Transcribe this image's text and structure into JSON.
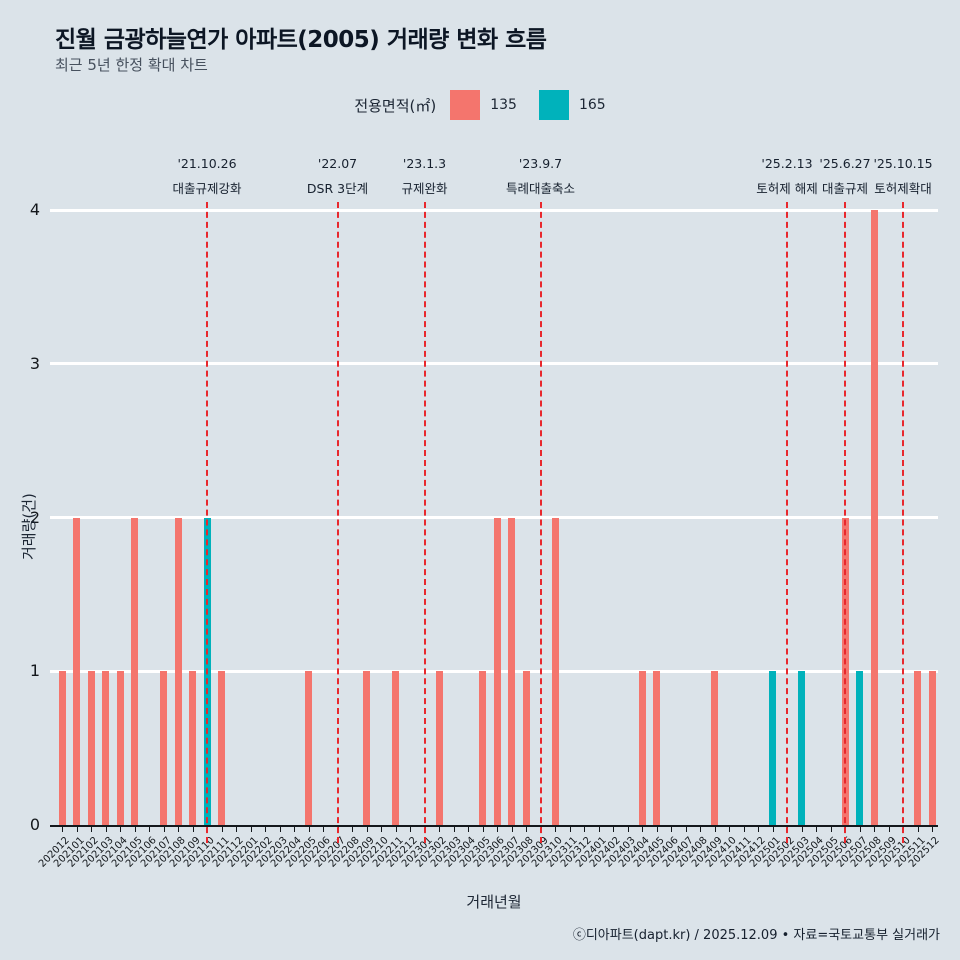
{
  "header": {
    "title": "진월 금광하늘연가 아파트(2005) 거래량 변화 흐름",
    "subtitle": "최근 5년 한정 확대 차트"
  },
  "legend": {
    "label": "전용면적(㎡)",
    "items": [
      {
        "label": "135",
        "color": "#f4756d"
      },
      {
        "label": "165",
        "color": "#00b2bb"
      }
    ]
  },
  "chart_data": {
    "type": "bar",
    "title": "진월 금광하늘연가 아파트(2005) 거래량 변화 흐름",
    "subtitle": "최근 5년 한정 확대 차트",
    "xlabel": "거래년월",
    "ylabel": "거래량(건)",
    "ylim": [
      0,
      4
    ],
    "yticks": [
      0,
      1,
      2,
      3,
      4
    ],
    "grid": true,
    "legend_position": "top",
    "categories": [
      "202012",
      "202101",
      "202102",
      "202103",
      "202104",
      "202105",
      "202106",
      "202107",
      "202108",
      "202109",
      "202110",
      "202111",
      "202112",
      "202201",
      "202202",
      "202203",
      "202204",
      "202205",
      "202206",
      "202207",
      "202208",
      "202209",
      "202210",
      "202211",
      "202212",
      "202301",
      "202302",
      "202303",
      "202304",
      "202305",
      "202306",
      "202307",
      "202308",
      "202309",
      "202310",
      "202311",
      "202312",
      "202401",
      "202402",
      "202403",
      "202404",
      "202405",
      "202406",
      "202407",
      "202408",
      "202409",
      "202410",
      "202411",
      "202412",
      "202501",
      "202502",
      "202503",
      "202504",
      "202505",
      "202506",
      "202507",
      "202508",
      "202509",
      "202510",
      "202511",
      "202512"
    ],
    "series": [
      {
        "name": "135",
        "color": "#f4756d",
        "values": {
          "202012": 1,
          "202101": 2,
          "202102": 1,
          "202103": 1,
          "202104": 1,
          "202105": 2,
          "202107": 1,
          "202108": 2,
          "202109": 1,
          "202111": 1,
          "202205": 1,
          "202209": 1,
          "202211": 1,
          "202302": 1,
          "202305": 1,
          "202306": 2,
          "202307": 2,
          "202308": 1,
          "202310": 2,
          "202404": 1,
          "202405": 1,
          "202409": 1,
          "202506": 2,
          "202508": 4,
          "202511": 1,
          "202512": 1
        }
      },
      {
        "name": "165",
        "color": "#00b2bb",
        "values": {
          "202110": 2,
          "202501": 1,
          "202503": 1,
          "202507": 1
        }
      }
    ],
    "events": [
      {
        "date": "'21.10.26",
        "label": "대출규제강화",
        "month": "202110"
      },
      {
        "date": "'22.07",
        "label": "DSR 3단계",
        "month": "202207"
      },
      {
        "date": "'23.1.3",
        "label": "규제완화",
        "month": "202301"
      },
      {
        "date": "'23.9.7",
        "label": "특례대출축소",
        "month": "202309"
      },
      {
        "date": "'25.2.13",
        "label": "토허제 해제",
        "month": "202502"
      },
      {
        "date": "'25.6.27",
        "label": "대출규제",
        "month": "202506"
      },
      {
        "date": "'25.10.15",
        "label": "토허제확대",
        "month": "202510"
      }
    ],
    "event_line_color": "#e8282d"
  },
  "footer": {
    "credit": "ⓒ디아파트(dapt.kr) / 2025.12.09 • 자료=국토교통부 실거래가"
  }
}
